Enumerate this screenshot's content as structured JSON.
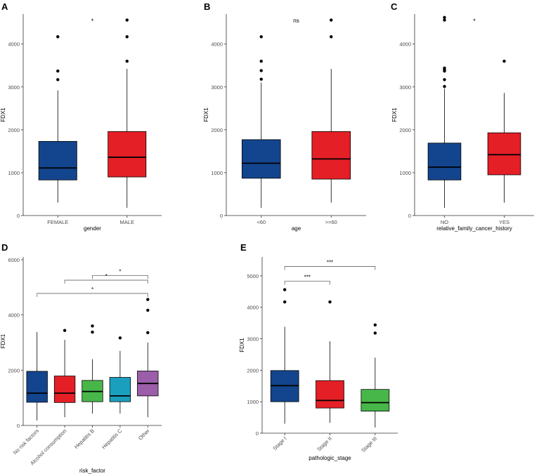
{
  "colors": {
    "blue": "#13458e",
    "red": "#e41f26",
    "green": "#47b749",
    "teal": "#1b9fbe",
    "purple": "#9b5ea8",
    "axis": "#333333",
    "tick_text": "#4d4d4d",
    "bracket": "#666666"
  },
  "chart_data": [
    {
      "type": "box",
      "panel_label": "A",
      "xlabel": "gender",
      "ylabel": "FDX1",
      "ylim": [
        0,
        4700
      ],
      "yticks": [
        0,
        1000,
        2000,
        3000,
        4000
      ],
      "annotations": [
        {
          "text": "*",
          "x": 0.5
        }
      ],
      "groups": [
        {
          "name": "FEMALE",
          "color_key": "blue",
          "whisker_low": 300,
          "q1": 830,
          "median": 1110,
          "q3": 1730,
          "whisker_high": 2920,
          "outliers": [
            3170,
            3370,
            4170
          ]
        },
        {
          "name": "MALE",
          "color_key": "red",
          "whisker_low": 180,
          "q1": 900,
          "median": 1360,
          "q3": 1960,
          "whisker_high": 3420,
          "outliers": [
            3600,
            4170,
            4560
          ]
        }
      ]
    },
    {
      "type": "box",
      "panel_label": "B",
      "xlabel": "age",
      "ylabel": "FDX1",
      "ylim": [
        0,
        4700
      ],
      "yticks": [
        0,
        1000,
        2000,
        3000,
        4000
      ],
      "annotations": [
        {
          "text": "ns",
          "x": 0.5
        }
      ],
      "groups": [
        {
          "name": "<60",
          "color_key": "blue",
          "whisker_low": 180,
          "q1": 870,
          "median": 1220,
          "q3": 1770,
          "whisker_high": 3100,
          "outliers": [
            3180,
            3380,
            3600,
            4170
          ]
        },
        {
          "name": ">=60",
          "color_key": "red",
          "whisker_low": 300,
          "q1": 850,
          "median": 1320,
          "q3": 1960,
          "whisker_high": 3420,
          "outliers": [
            4170,
            4560
          ]
        }
      ]
    },
    {
      "type": "box",
      "panel_label": "C",
      "xlabel": "relative_family_cancer_history",
      "ylabel": "FDX1",
      "ylim": [
        0,
        4700
      ],
      "yticks": [
        0,
        1000,
        2000,
        3000,
        4000
      ],
      "annotations": [
        {
          "text": "*",
          "x": 0.5
        }
      ],
      "groups": [
        {
          "name": "NO",
          "color_key": "blue",
          "whisker_low": 180,
          "q1": 830,
          "median": 1130,
          "q3": 1690,
          "whisker_high": 2960,
          "outliers": [
            3010,
            3170,
            3370,
            3400,
            3440,
            4560,
            4620
          ]
        },
        {
          "name": "YES",
          "color_key": "red",
          "whisker_low": 300,
          "q1": 950,
          "median": 1420,
          "q3": 1930,
          "whisker_high": 2860,
          "outliers": [
            3600
          ]
        }
      ]
    },
    {
      "type": "box",
      "panel_label": "D",
      "xlabel": "risk_factor",
      "ylabel": "FDX1",
      "ylim": [
        0,
        6100
      ],
      "yticks": [
        0,
        2000,
        4000,
        6000
      ],
      "brackets": [
        {
          "from": 2,
          "to": 4,
          "level": 5430,
          "label": "*"
        },
        {
          "from": 1,
          "to": 4,
          "level": 5260,
          "label": "*"
        },
        {
          "from": 0,
          "to": 4,
          "level": 4780,
          "label": "*"
        }
      ],
      "groups": [
        {
          "name": "No risk factors",
          "color_key": "blue",
          "whisker_low": 180,
          "q1": 840,
          "median": 1170,
          "q3": 1960,
          "whisker_high": 3380,
          "outliers": []
        },
        {
          "name": "Alcohol consumption",
          "color_key": "red",
          "whisker_low": 300,
          "q1": 830,
          "median": 1170,
          "q3": 1790,
          "whisker_high": 3100,
          "outliers": [
            3440
          ]
        },
        {
          "name": "Hepatitis B",
          "color_key": "green",
          "whisker_low": 430,
          "q1": 860,
          "median": 1230,
          "q3": 1630,
          "whisker_high": 2400,
          "outliers": [
            3380,
            3600
          ]
        },
        {
          "name": "Hepatitis C",
          "color_key": "teal",
          "whisker_low": 430,
          "q1": 860,
          "median": 1070,
          "q3": 1740,
          "whisker_high": 2700,
          "outliers": [
            3170
          ]
        },
        {
          "name": "Other",
          "color_key": "purple",
          "whisker_low": 300,
          "q1": 1070,
          "median": 1520,
          "q3": 1970,
          "whisker_high": 3000,
          "outliers": [
            3360,
            4170,
            4560
          ]
        }
      ]
    },
    {
      "type": "box",
      "panel_label": "E",
      "xlabel": "pathologic_stage",
      "ylabel": "FDX1",
      "ylim": [
        0,
        5600
      ],
      "yticks": [
        0,
        1000,
        2000,
        3000,
        4000,
        5000
      ],
      "brackets": [
        {
          "from": 0,
          "to": 2,
          "level": 5300,
          "label": "***"
        },
        {
          "from": 0,
          "to": 1,
          "level": 4830,
          "label": "***"
        }
      ],
      "groups": [
        {
          "name": "Stage I",
          "color_key": "blue",
          "whisker_low": 300,
          "q1": 1000,
          "median": 1510,
          "q3": 1990,
          "whisker_high": 3380,
          "outliers": [
            4170,
            4560
          ]
        },
        {
          "name": "Stage II",
          "color_key": "red",
          "whisker_low": 330,
          "q1": 800,
          "median": 1040,
          "q3": 1670,
          "whisker_high": 2920,
          "outliers": [
            4170
          ]
        },
        {
          "name": "Stage III",
          "color_key": "green",
          "whisker_low": 180,
          "q1": 700,
          "median": 970,
          "q3": 1390,
          "whisker_high": 2400,
          "outliers": [
            3180,
            3440
          ]
        }
      ]
    }
  ]
}
